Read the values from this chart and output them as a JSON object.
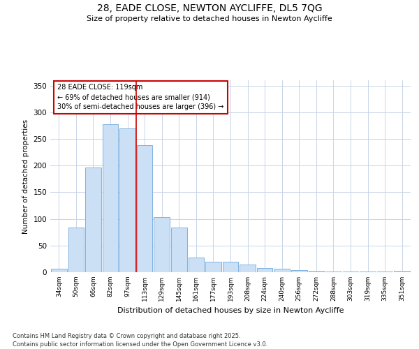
{
  "title1": "28, EADE CLOSE, NEWTON AYCLIFFE, DL5 7QG",
  "title2": "Size of property relative to detached houses in Newton Aycliffe",
  "xlabel": "Distribution of detached houses by size in Newton Aycliffe",
  "ylabel": "Number of detached properties",
  "categories": [
    "34sqm",
    "50sqm",
    "66sqm",
    "82sqm",
    "97sqm",
    "113sqm",
    "129sqm",
    "145sqm",
    "161sqm",
    "177sqm",
    "193sqm",
    "208sqm",
    "224sqm",
    "240sqm",
    "256sqm",
    "272sqm",
    "288sqm",
    "303sqm",
    "319sqm",
    "335sqm",
    "351sqm"
  ],
  "values": [
    6,
    84,
    196,
    277,
    270,
    238,
    104,
    84,
    28,
    20,
    19,
    15,
    8,
    6,
    4,
    2,
    1,
    1,
    1,
    1,
    2
  ],
  "bar_color": "#cce0f5",
  "bar_edge_color": "#7eb3e0",
  "vline_index": 5,
  "vline_color": "#cc0000",
  "annotation_title": "28 EADE CLOSE: 119sqm",
  "annotation_line1": "← 69% of detached houses are smaller (914)",
  "annotation_line2": "30% of semi-detached houses are larger (396) →",
  "annotation_box_edgecolor": "#cc0000",
  "ylim": [
    0,
    360
  ],
  "yticks": [
    0,
    50,
    100,
    150,
    200,
    250,
    300,
    350
  ],
  "bg_color": "#ffffff",
  "grid_color": "#c8d4e8",
  "footer1": "Contains HM Land Registry data © Crown copyright and database right 2025.",
  "footer2": "Contains public sector information licensed under the Open Government Licence v3.0."
}
